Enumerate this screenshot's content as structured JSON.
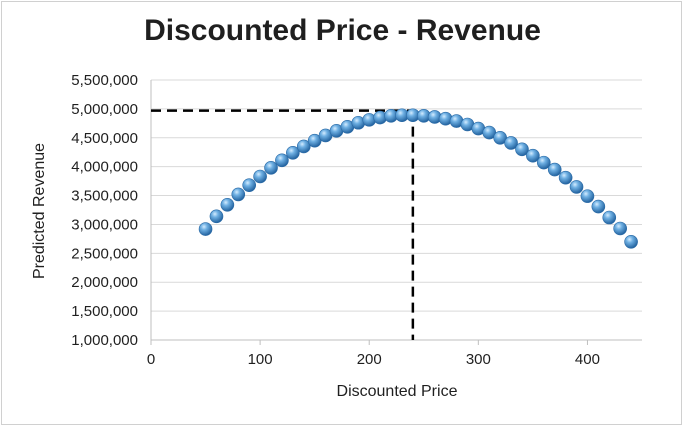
{
  "chart_data": {
    "type": "scatter",
    "title": "Discounted Price - Revenue",
    "xlabel": "Discounted Price",
    "ylabel": "Predicted Revenue",
    "xlim": [
      0,
      450
    ],
    "ylim": [
      1000000,
      5500000
    ],
    "xticks": [
      0,
      100,
      200,
      300,
      400
    ],
    "xtick_labels": [
      "0",
      "100",
      "200",
      "300",
      "400"
    ],
    "yticks": [
      1000000,
      1500000,
      2000000,
      2500000,
      3000000,
      3500000,
      4000000,
      4500000,
      5000000,
      5500000
    ],
    "ytick_labels": [
      "1,000,000",
      "1,500,000",
      "2,000,000",
      "2,500,000",
      "3,000,000",
      "3,500,000",
      "4,000,000",
      "4,500,000",
      "5,000,000",
      "5,500,000"
    ],
    "grid": "horizontal",
    "marker_color": "#4a90c8",
    "reference_color": "#000000",
    "reference_point": {
      "x": 240,
      "y": 4970000
    },
    "x": [
      50,
      60,
      70,
      80,
      90,
      100,
      110,
      120,
      130,
      140,
      150,
      160,
      170,
      180,
      190,
      200,
      210,
      220,
      230,
      240,
      250,
      260,
      270,
      280,
      290,
      300,
      310,
      320,
      330,
      340,
      350,
      360,
      370,
      380,
      390,
      400,
      410,
      420,
      430,
      440
    ],
    "y": [
      2920000,
      3140000,
      3340000,
      3520000,
      3680000,
      3830000,
      3980000,
      4110000,
      4240000,
      4350000,
      4450000,
      4540000,
      4620000,
      4690000,
      4760000,
      4810000,
      4850000,
      4880000,
      4890000,
      4890000,
      4880000,
      4860000,
      4830000,
      4790000,
      4730000,
      4660000,
      4590000,
      4500000,
      4410000,
      4300000,
      4190000,
      4070000,
      3950000,
      3810000,
      3650000,
      3490000,
      3310000,
      3120000,
      2930000,
      2700000
    ]
  }
}
